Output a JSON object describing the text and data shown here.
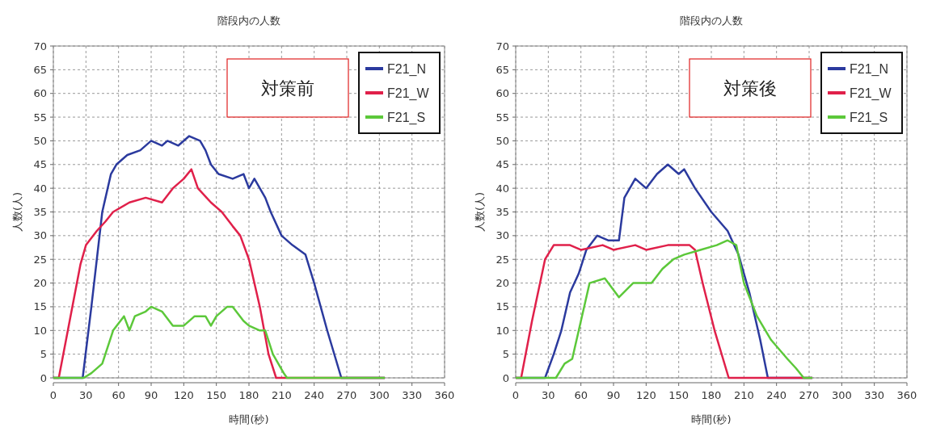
{
  "chart_data": [
    {
      "type": "line",
      "title": "階段内の人数",
      "xlabel": "時間(秒)",
      "ylabel": "人数(人)",
      "annotations": [
        "対策前"
      ],
      "xlim": [
        0,
        360
      ],
      "xticks": [
        0,
        30,
        60,
        90,
        120,
        150,
        180,
        210,
        240,
        270,
        300,
        330,
        360
      ],
      "ylim": [
        0,
        70
      ],
      "yticks": [
        0,
        5,
        10,
        15,
        20,
        25,
        30,
        35,
        40,
        45,
        50,
        55,
        60,
        65,
        70
      ],
      "grid": true,
      "legend": "top right",
      "line_style": "solid",
      "marker": "none",
      "series": [
        {
          "name": "F21_N",
          "color": "#2b3a9e",
          "x": [
            0,
            27,
            35,
            45,
            53,
            58,
            68,
            80,
            90,
            100,
            105,
            115,
            125,
            135,
            140,
            145,
            152,
            165,
            175,
            180,
            185,
            195,
            200,
            210,
            220,
            232,
            240,
            252,
            265,
            305
          ],
          "values": [
            0,
            0,
            15,
            35,
            43,
            45,
            47,
            48,
            50,
            49,
            50,
            49,
            51,
            50,
            48,
            45,
            43,
            42,
            43,
            40,
            42,
            38,
            35,
            30,
            28,
            26,
            20,
            10,
            0,
            0
          ]
        },
        {
          "name": "F21_W",
          "color": "#e0204a",
          "x": [
            0,
            5,
            15,
            25,
            30,
            40,
            48,
            55,
            70,
            85,
            100,
            110,
            120,
            127,
            133,
            145,
            155,
            165,
            172,
            180,
            190,
            198,
            205,
            305
          ],
          "values": [
            0,
            0,
            12,
            24,
            28,
            31,
            33,
            35,
            37,
            38,
            37,
            40,
            42,
            44,
            40,
            37,
            35,
            32,
            30,
            25,
            15,
            5,
            0,
            0
          ]
        },
        {
          "name": "F21_S",
          "color": "#5cc83a",
          "x": [
            0,
            28,
            35,
            45,
            55,
            65,
            70,
            75,
            85,
            90,
            100,
            110,
            120,
            130,
            140,
            145,
            150,
            160,
            165,
            175,
            180,
            190,
            195,
            202,
            212,
            215,
            305
          ],
          "values": [
            0,
            0,
            1,
            3,
            10,
            13,
            10,
            13,
            14,
            15,
            14,
            11,
            11,
            13,
            13,
            11,
            13,
            15,
            15,
            12,
            11,
            10,
            10,
            5,
            1,
            0,
            0
          ]
        }
      ]
    },
    {
      "type": "line",
      "title": "階段内の人数",
      "xlabel": "時間(秒)",
      "ylabel": "人数(人)",
      "annotations": [
        "対策後"
      ],
      "xlim": [
        0,
        360
      ],
      "xticks": [
        0,
        30,
        60,
        90,
        120,
        150,
        180,
        210,
        240,
        270,
        300,
        330,
        360
      ],
      "ylim": [
        0,
        70
      ],
      "yticks": [
        0,
        5,
        10,
        15,
        20,
        25,
        30,
        35,
        40,
        45,
        50,
        55,
        60,
        65,
        70
      ],
      "grid": true,
      "legend": "top right",
      "line_style": "solid",
      "marker": "none",
      "series": [
        {
          "name": "F21_N",
          "color": "#2b3a9e",
          "x": [
            0,
            27,
            35,
            42,
            50,
            58,
            65,
            75,
            85,
            95,
            100,
            110,
            120,
            130,
            140,
            150,
            155,
            165,
            180,
            195,
            205,
            215,
            225,
            232,
            273
          ],
          "values": [
            0,
            0,
            5,
            10,
            18,
            22,
            27,
            30,
            29,
            29,
            38,
            42,
            40,
            43,
            45,
            43,
            44,
            40,
            35,
            31,
            26,
            18,
            8,
            0,
            0
          ]
        },
        {
          "name": "F21_W",
          "color": "#e0204a",
          "x": [
            0,
            5,
            15,
            27,
            35,
            50,
            60,
            80,
            90,
            110,
            120,
            140,
            160,
            165,
            172,
            183,
            196,
            273
          ],
          "values": [
            0,
            0,
            12,
            25,
            28,
            28,
            27,
            28,
            27,
            28,
            27,
            28,
            28,
            27,
            20,
            10,
            0,
            0
          ]
        },
        {
          "name": "F21_S",
          "color": "#5cc83a",
          "x": [
            0,
            30,
            37,
            45,
            52,
            58,
            68,
            82,
            95,
            108,
            125,
            135,
            145,
            155,
            170,
            185,
            195,
            203,
            210,
            222,
            235,
            250,
            258,
            265,
            273
          ],
          "values": [
            0,
            0,
            0,
            3,
            4,
            10,
            20,
            21,
            17,
            20,
            20,
            23,
            25,
            26,
            27,
            28,
            29,
            28,
            20,
            13,
            8,
            4,
            2,
            0,
            0
          ]
        }
      ]
    }
  ]
}
